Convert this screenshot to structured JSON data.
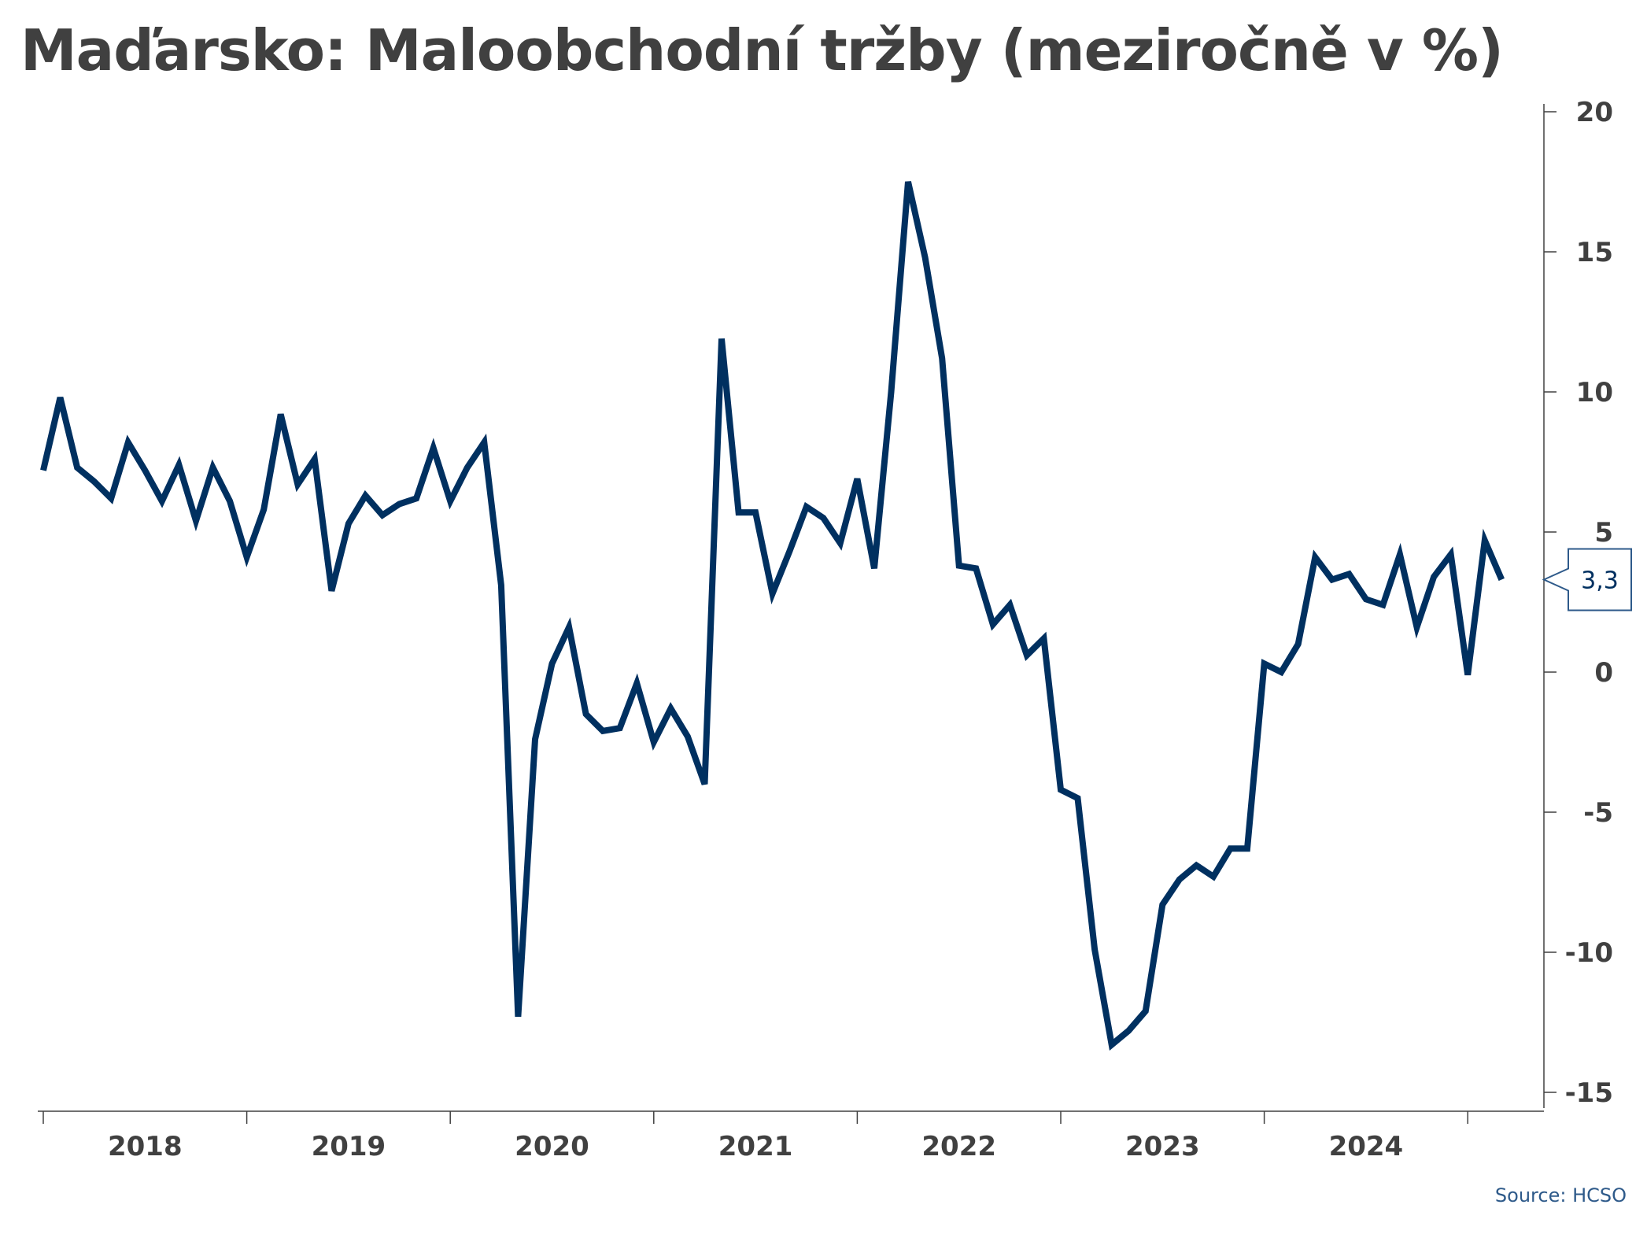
{
  "title": "Maďarsko: Maloobchodní tržby (meziročně v %)",
  "source": "Source: HCSO",
  "colors": {
    "line": "#003060",
    "axis": "#404040",
    "callout_border": "#2e5a8a"
  },
  "chart_data": {
    "type": "line",
    "title": "Maďarsko: Maloobchodní tržby (meziročně v %)",
    "xlabel": "",
    "ylabel": "",
    "ylim": [
      -15,
      20
    ],
    "yticks": [
      20,
      15,
      10,
      5,
      0,
      -5,
      -10,
      -15
    ],
    "ytick_labels": [
      "20",
      "15",
      "10",
      "5",
      "0",
      "-5",
      "-10",
      "-15"
    ],
    "x_start": "2017-12",
    "x_labels": [
      "2018",
      "2019",
      "2020",
      "2021",
      "2022",
      "2023",
      "2024"
    ],
    "y_axis_position": "right",
    "grid": false,
    "legend": "none",
    "last_value_label": "3,3",
    "series": [
      {
        "values": [
          7.2,
          9.8,
          7.3,
          6.8,
          6.2,
          8.2,
          7.2,
          6.1,
          7.4,
          5.4,
          7.3,
          6.1,
          4.1,
          5.8,
          9.2,
          6.7,
          7.6,
          2.9,
          5.3,
          6.3,
          5.6,
          6.0,
          6.2,
          8.0,
          6.1,
          7.3,
          8.2,
          3.1,
          -12.3,
          -2.4,
          0.3,
          1.6,
          -1.5,
          -2.1,
          -2.0,
          -0.4,
          -2.5,
          -1.3,
          -2.3,
          -4.0,
          11.9,
          5.7,
          5.7,
          2.8,
          4.3,
          5.9,
          5.5,
          4.6,
          6.9,
          3.7,
          10.0,
          17.5,
          14.8,
          11.2,
          3.8,
          3.7,
          1.7,
          2.4,
          0.6,
          1.2,
          -4.2,
          -4.5,
          -9.9,
          -13.3,
          -12.8,
          -12.1,
          -8.3,
          -7.4,
          -6.9,
          -7.3,
          -6.3,
          -6.3,
          0.3,
          0.0,
          1.0,
          4.1,
          3.3,
          3.5,
          2.6,
          2.4,
          4.2,
          1.6,
          3.4,
          4.2,
          -0.1,
          4.7,
          3.3
        ]
      }
    ]
  }
}
